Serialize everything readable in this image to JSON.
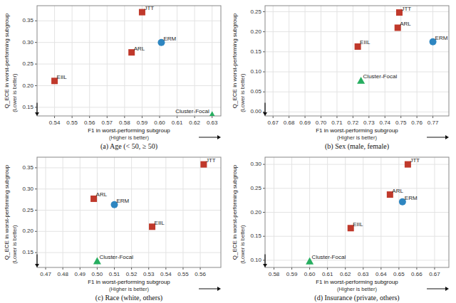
{
  "chart_data": [
    {
      "type": "scatter",
      "title": "(a) Age (< 50, ≥ 50)",
      "xlabel": "F1 in worst-performing subgroup",
      "xlabel_sub": "(Higher is better)",
      "ylabel": "Q_ECE in worst-performing subgroup",
      "ylabel_sub": "(Lower is better)",
      "xlim": [
        0.53,
        0.635
      ],
      "ylim": [
        0.13,
        0.385
      ],
      "xticks": [
        0.54,
        0.55,
        0.56,
        0.57,
        0.58,
        0.59,
        {
          "value": 0.6,
          "label": "0.60"
        },
        0.61,
        0.62,
        0.63
      ],
      "yticks": [
        0.15,
        {
          "value": 0.2,
          "label": "0.20"
        },
        0.25,
        {
          "value": 0.3,
          "label": "0.30"
        },
        0.35
      ],
      "grid": true,
      "series": [
        {
          "name": "JTT",
          "color": "#c0392b",
          "marker": "square",
          "x": [
            0.59
          ],
          "values": [
            0.37
          ]
        },
        {
          "name": "ERM",
          "color": "#2e86c1",
          "marker": "circle",
          "x": [
            0.601
          ],
          "values": [
            0.3
          ]
        },
        {
          "name": "ARL",
          "color": "#c0392b",
          "marker": "square",
          "x": [
            0.584
          ],
          "values": [
            0.277
          ]
        },
        {
          "name": "EIIL",
          "color": "#c0392b",
          "marker": "square",
          "x": [
            0.54
          ],
          "values": [
            0.211
          ]
        },
        {
          "name": "Cluster-Focal",
          "color": "#27ae60",
          "marker": "triangle",
          "x": [
            0.63
          ],
          "values": [
            0.132
          ]
        }
      ]
    },
    {
      "type": "scatter",
      "title": "(b) Sex (male, female)",
      "xlabel": "F1 in worst-performing subgroup",
      "xlabel_sub": "(Higher is better)",
      "ylabel": "Q_ECE in worst-performing subgroup",
      "ylabel_sub": "(Lower is better)",
      "xlim": [
        0.665,
        0.78
      ],
      "ylim": [
        -0.01,
        0.265
      ],
      "xticks": [
        0.67,
        0.68,
        0.69,
        {
          "value": 0.7,
          "label": "0.70"
        },
        0.71,
        0.72,
        0.73,
        0.74,
        0.75,
        0.76,
        0.77
      ],
      "yticks": [
        {
          "value": 0,
          "label": "0.00"
        },
        0.05,
        {
          "value": 0.1,
          "label": "0.10"
        },
        0.15,
        {
          "value": 0.2,
          "label": "0.20"
        },
        0.25
      ],
      "grid": true,
      "series": [
        {
          "name": "JTT",
          "color": "#c0392b",
          "marker": "square",
          "x": [
            0.749
          ],
          "values": [
            0.248
          ]
        },
        {
          "name": "ARL",
          "color": "#c0392b",
          "marker": "square",
          "x": [
            0.748
          ],
          "values": [
            0.21
          ]
        },
        {
          "name": "ERM",
          "color": "#2e86c1",
          "marker": "circle",
          "x": [
            0.77
          ],
          "values": [
            0.175
          ]
        },
        {
          "name": "EIIL",
          "color": "#c0392b",
          "marker": "square",
          "x": [
            0.723
          ],
          "values": [
            0.163
          ]
        },
        {
          "name": "Cluster-Focal",
          "color": "#27ae60",
          "marker": "triangle",
          "x": [
            0.725
          ],
          "values": [
            0.078
          ]
        }
      ]
    },
    {
      "type": "scatter",
      "title": "(c) Race (white, others)",
      "xlabel": "F1 in worst-performing subgroup",
      "xlabel_sub": "(Higher is better)",
      "ylabel": "Q_ECE in worst-performing subgroup",
      "ylabel_sub": "(Lower is better)",
      "xlim": [
        0.465,
        0.572
      ],
      "ylim": [
        0.115,
        0.375
      ],
      "xticks": [
        0.47,
        0.48,
        0.49,
        {
          "value": 0.5,
          "label": "0.50"
        },
        0.51,
        0.52,
        0.53,
        0.54,
        0.55,
        0.56
      ],
      "yticks": [
        0.15,
        {
          "value": 0.2,
          "label": "0.20"
        },
        0.25,
        {
          "value": 0.3,
          "label": "0.30"
        },
        0.35
      ],
      "grid": true,
      "series": [
        {
          "name": "JTT",
          "color": "#c0392b",
          "marker": "square",
          "x": [
            0.562
          ],
          "values": [
            0.358
          ]
        },
        {
          "name": "ARL",
          "color": "#c0392b",
          "marker": "square",
          "x": [
            0.498
          ],
          "values": [
            0.277
          ]
        },
        {
          "name": "ERM",
          "color": "#2e86c1",
          "marker": "circle",
          "x": [
            0.51
          ],
          "values": [
            0.263
          ]
        },
        {
          "name": "EIIL",
          "color": "#c0392b",
          "marker": "square",
          "x": [
            0.532
          ],
          "values": [
            0.211
          ]
        },
        {
          "name": "Cluster-Focal",
          "color": "#27ae60",
          "marker": "triangle",
          "x": [
            0.5
          ],
          "values": [
            0.13
          ]
        }
      ]
    },
    {
      "type": "scatter",
      "title": "(d) Insurance (private, others)",
      "xlabel": "F1 in worst-performing subgroup",
      "xlabel_sub": "(Higher is better)",
      "ylabel": "Q_ECE in worst-performing subgroup",
      "ylabel_sub": "(Lower is better)",
      "xlim": [
        0.575,
        0.678
      ],
      "ylim": [
        0.085,
        0.315
      ],
      "xticks": [
        0.58,
        0.59,
        {
          "value": 0.6,
          "label": "0.60"
        },
        0.61,
        0.62,
        0.63,
        0.64,
        0.65,
        0.66,
        0.67
      ],
      "yticks": [
        {
          "value": 0.1,
          "label": "0.10"
        },
        0.15,
        {
          "value": 0.2,
          "label": "0.20"
        },
        0.25,
        {
          "value": 0.3,
          "label": "0.30"
        }
      ],
      "grid": true,
      "series": [
        {
          "name": "JTT",
          "color": "#c0392b",
          "marker": "square",
          "x": [
            0.655
          ],
          "values": [
            0.3
          ]
        },
        {
          "name": "ARL",
          "color": "#c0392b",
          "marker": "square",
          "x": [
            0.645
          ],
          "values": [
            0.237
          ]
        },
        {
          "name": "ERM",
          "color": "#2e86c1",
          "marker": "circle",
          "x": [
            0.652
          ],
          "values": [
            0.222
          ]
        },
        {
          "name": "EIIL",
          "color": "#c0392b",
          "marker": "square",
          "x": [
            0.623
          ],
          "values": [
            0.167
          ]
        },
        {
          "name": "Cluster-Focal",
          "color": "#27ae60",
          "marker": "triangle",
          "x": [
            0.6
          ],
          "values": [
            0.098
          ]
        }
      ]
    }
  ]
}
